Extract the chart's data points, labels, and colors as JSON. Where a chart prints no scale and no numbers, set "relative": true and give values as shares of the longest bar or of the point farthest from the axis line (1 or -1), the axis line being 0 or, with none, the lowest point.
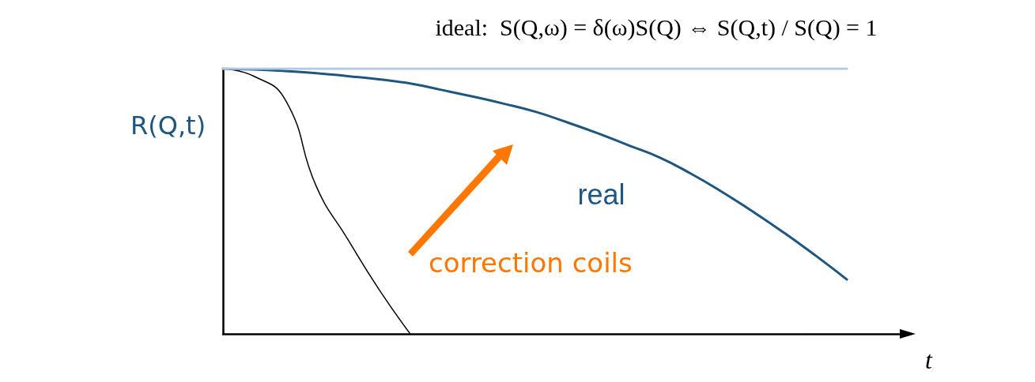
{
  "chart_data": {
    "type": "line",
    "relative": true,
    "title": "ideal:  S(Q,ω) = δ(ω)S(Q) ⇔ S(Q,t) / S(Q) = 1",
    "ylabel": "R(Q,t)",
    "xlabel": "t",
    "categories": [
      null,
      null,
      null,
      null,
      null,
      null,
      null,
      null,
      null,
      null,
      null,
      null,
      null,
      null,
      null,
      null,
      null,
      null,
      null,
      null,
      null,
      null,
      null
    ],
    "series": [
      {
        "color": "#b4c7e7",
        "values": [
          1,
          1,
          1,
          1,
          1,
          1,
          1,
          1,
          1,
          1,
          1,
          1,
          1,
          1,
          1,
          1,
          1,
          1,
          1,
          1,
          1,
          null,
          null
        ]
      },
      {
        "name": "real",
        "color": "#1f5680",
        "values": [
          1,
          0.997,
          0.991,
          0.983,
          0.972,
          0.96,
          0.944,
          0.92,
          0.895,
          0.868,
          0.838,
          0.799,
          0.757,
          0.711,
          0.665,
          0.604,
          0.535,
          0.46,
          0.38,
          0.295,
          0.205,
          null,
          null
        ]
      },
      {
        "color": "#000000",
        "values": [
          1,
          0.971,
          0.882,
          0.554,
          0.357,
          0.168,
          0,
          null,
          null,
          null,
          null,
          null,
          null,
          null,
          null,
          null,
          null,
          null,
          null,
          null,
          null,
          null,
          null
        ]
      }
    ],
    "annotations": [
      "correction coils"
    ],
    "grid": false,
    "marker": "none",
    "line_style": "solid"
  }
}
